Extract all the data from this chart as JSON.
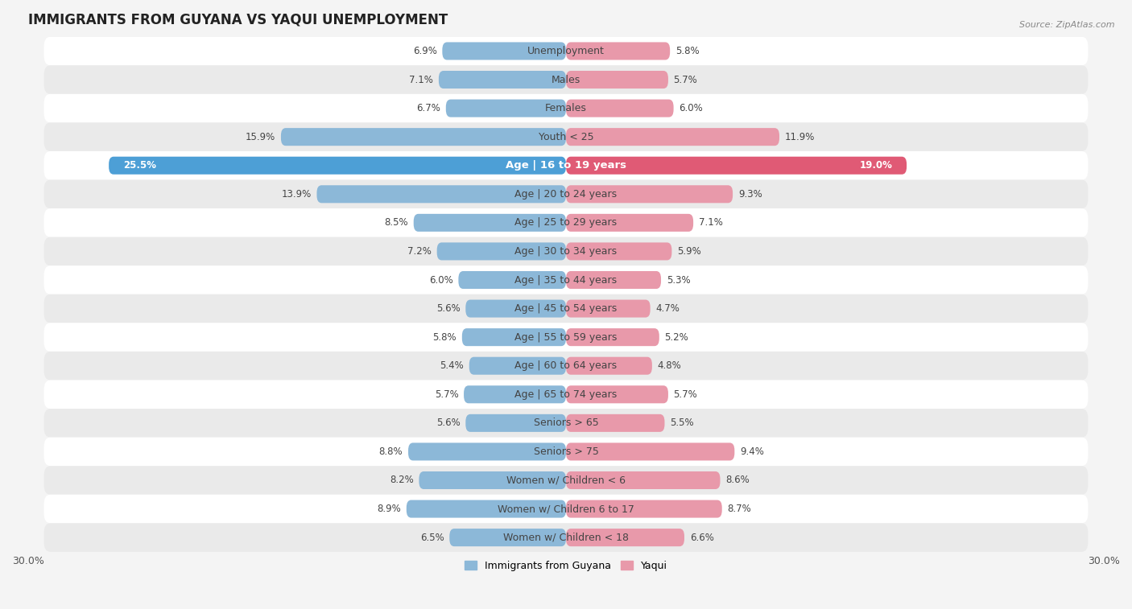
{
  "title": "IMMIGRANTS FROM GUYANA VS YAQUI UNEMPLOYMENT",
  "source": "Source: ZipAtlas.com",
  "categories": [
    "Unemployment",
    "Males",
    "Females",
    "Youth < 25",
    "Age | 16 to 19 years",
    "Age | 20 to 24 years",
    "Age | 25 to 29 years",
    "Age | 30 to 34 years",
    "Age | 35 to 44 years",
    "Age | 45 to 54 years",
    "Age | 55 to 59 years",
    "Age | 60 to 64 years",
    "Age | 65 to 74 years",
    "Seniors > 65",
    "Seniors > 75",
    "Women w/ Children < 6",
    "Women w/ Children 6 to 17",
    "Women w/ Children < 18"
  ],
  "guyana_values": [
    6.9,
    7.1,
    6.7,
    15.9,
    25.5,
    13.9,
    8.5,
    7.2,
    6.0,
    5.6,
    5.8,
    5.4,
    5.7,
    5.6,
    8.8,
    8.2,
    8.9,
    6.5
  ],
  "yaqui_values": [
    5.8,
    5.7,
    6.0,
    11.9,
    19.0,
    9.3,
    7.1,
    5.9,
    5.3,
    4.7,
    5.2,
    4.8,
    5.7,
    5.5,
    9.4,
    8.6,
    8.7,
    6.6
  ],
  "guyana_color": "#8cb8d8",
  "yaqui_color": "#e899aa",
  "guyana_highlight_color": "#4d9fd6",
  "yaqui_highlight_color": "#e05a75",
  "highlight_row": 4,
  "xlim": 30.0,
  "bar_height": 0.62,
  "bg_color": "#f4f4f4",
  "row_colors": [
    "#ffffff",
    "#eaeaea"
  ],
  "title_fontsize": 12,
  "label_fontsize": 9,
  "value_fontsize": 8.5,
  "legend_label_guyana": "Immigrants from Guyana",
  "legend_label_yaqui": "Yaqui"
}
